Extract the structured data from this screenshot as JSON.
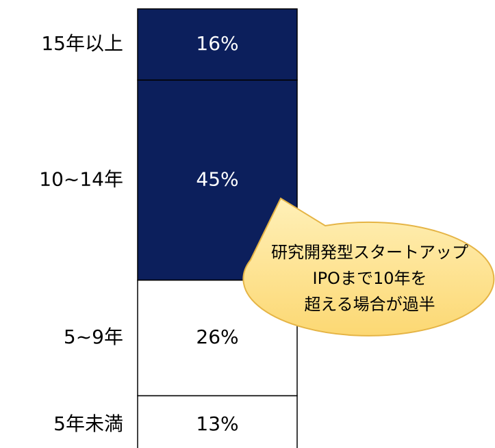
{
  "chart_data": {
    "type": "stacked_bar",
    "series": [
      {
        "name": "5年未満",
        "color": "#ffffff",
        "values": [
          13
        ],
        "value_labels": [
          "13%"
        ]
      },
      {
        "name": "5~9年",
        "color": "#ffffff",
        "values": [
          26
        ],
        "value_labels": [
          "26%"
        ]
      },
      {
        "name": "10~14年",
        "color": "#0c1f5c",
        "values": [
          45
        ],
        "value_labels": [
          "45%"
        ]
      },
      {
        "name": "15年以上",
        "color": "#0c1f5c",
        "values": [
          16
        ],
        "value_labels": [
          "16%"
        ]
      }
    ],
    "ylim": [
      0,
      100
    ],
    "annotation": [
      "研究開発型スタートアップ",
      "IPOまで10年を",
      "超える場合が過半"
    ]
  }
}
